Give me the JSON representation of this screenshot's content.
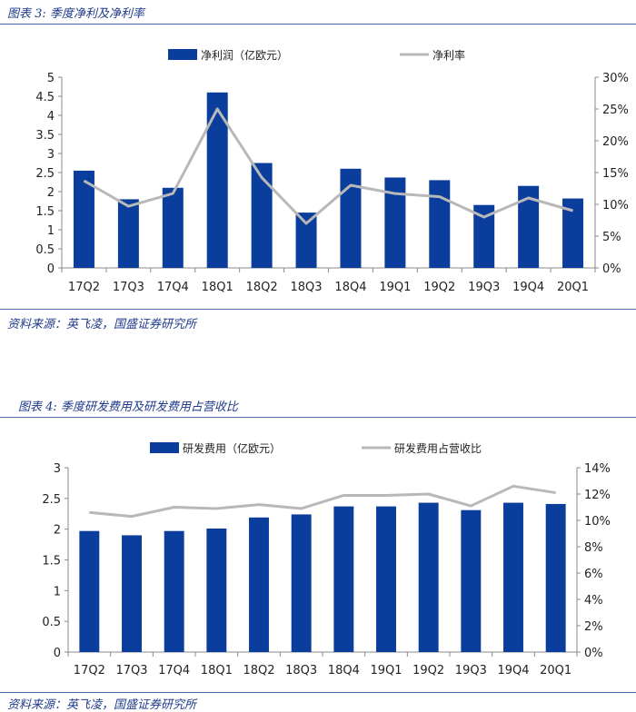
{
  "charts": [
    {
      "title": "图表 3:  季度净利及净利率",
      "source": "资料来源：英飞凌，国盛证券研究所",
      "chart_data": {
        "type": "bar",
        "categories": [
          "17Q2",
          "17Q3",
          "17Q4",
          "18Q1",
          "18Q2",
          "18Q3",
          "18Q4",
          "19Q1",
          "19Q2",
          "19Q3",
          "19Q4",
          "20Q1"
        ],
        "series": [
          {
            "name": "净利润（亿欧元）",
            "type": "bar",
            "axis": "left",
            "values": [
              2.55,
              1.8,
              2.1,
              4.6,
              2.75,
              1.45,
              2.6,
              2.37,
              2.3,
              1.65,
              2.15,
              1.82
            ]
          },
          {
            "name": "净利率",
            "type": "line",
            "axis": "right",
            "values": [
              13.7,
              9.7,
              11.7,
              25.0,
              14.2,
              7.0,
              13.0,
              11.7,
              11.2,
              8.0,
              11.0,
              9.0
            ]
          }
        ],
        "ylim": [
          0,
          5
        ],
        "yticks": [
          "0",
          "0.5",
          "1",
          "1.5",
          "2",
          "2.5",
          "3",
          "3.5",
          "4",
          "4.5",
          "5"
        ],
        "y2lim": [
          0,
          30
        ],
        "y2ticks": [
          "0%",
          "5%",
          "10%",
          "15%",
          "20%",
          "25%",
          "30%"
        ],
        "legend": "top",
        "grid": false
      }
    },
    {
      "title": "图表 4:  季度研发费用及研发费用占营收比",
      "source": "资料来源：英飞凌，国盛证券研究所",
      "chart_data": {
        "type": "bar",
        "categories": [
          "17Q2",
          "17Q3",
          "17Q4",
          "18Q1",
          "18Q2",
          "18Q3",
          "18Q4",
          "19Q1",
          "19Q2",
          "19Q3",
          "19Q4",
          "20Q1"
        ],
        "series": [
          {
            "name": "研发费用（亿欧元）",
            "type": "bar",
            "axis": "left",
            "values": [
              1.97,
              1.9,
              1.97,
              2.01,
              2.19,
              2.24,
              2.37,
              2.37,
              2.43,
              2.31,
              2.43,
              2.41
            ]
          },
          {
            "name": "研发费用占营收比",
            "type": "line",
            "axis": "right",
            "values": [
              10.6,
              10.3,
              11.0,
              10.9,
              11.2,
              10.9,
              11.9,
              11.9,
              12.0,
              11.1,
              12.6,
              12.1
            ]
          }
        ],
        "ylim": [
          0,
          3
        ],
        "yticks": [
          "0",
          "0.5",
          "1",
          "1.5",
          "2",
          "2.5",
          "3"
        ],
        "y2lim": [
          0,
          14
        ],
        "y2ticks": [
          "0%",
          "2%",
          "4%",
          "6%",
          "8%",
          "10%",
          "12%",
          "14%"
        ],
        "legend": "top",
        "grid": false
      }
    }
  ],
  "colors": {
    "bar": "#0a3d9c",
    "line": "#b8b8b8",
    "axis": "#888888",
    "title": "#1f3a8a"
  }
}
